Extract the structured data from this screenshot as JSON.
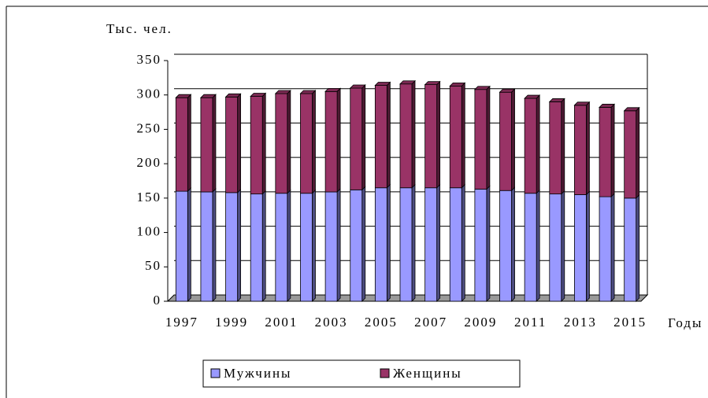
{
  "chart_data": {
    "type": "bar",
    "stacked": true,
    "y_label": "Тыс. чел.",
    "x_label": "Годы",
    "categories": [
      "1997",
      null,
      "1999",
      null,
      "2001",
      null,
      "2003",
      null,
      "2005",
      null,
      "2007",
      null,
      "2009",
      null,
      "2011",
      null,
      "2013",
      null,
      "2015"
    ],
    "series": [
      {
        "name": "Мужчины",
        "color": "#9999ff",
        "values": [
          160,
          159,
          158,
          156,
          157,
          157,
          159,
          162,
          165,
          165,
          165,
          165,
          163,
          161,
          157,
          156,
          155,
          152,
          150
        ]
      },
      {
        "name": "Женщины",
        "color": "#993366",
        "values": [
          136,
          137,
          139,
          142,
          145,
          145,
          146,
          148,
          149,
          151,
          150,
          148,
          145,
          143,
          138,
          134,
          130,
          130,
          127
        ]
      }
    ],
    "ylim": [
      0,
      350
    ],
    "yticks": [
      0,
      50,
      100,
      150,
      200,
      250,
      300,
      350
    ],
    "grid": true,
    "legend": "bottom"
  }
}
